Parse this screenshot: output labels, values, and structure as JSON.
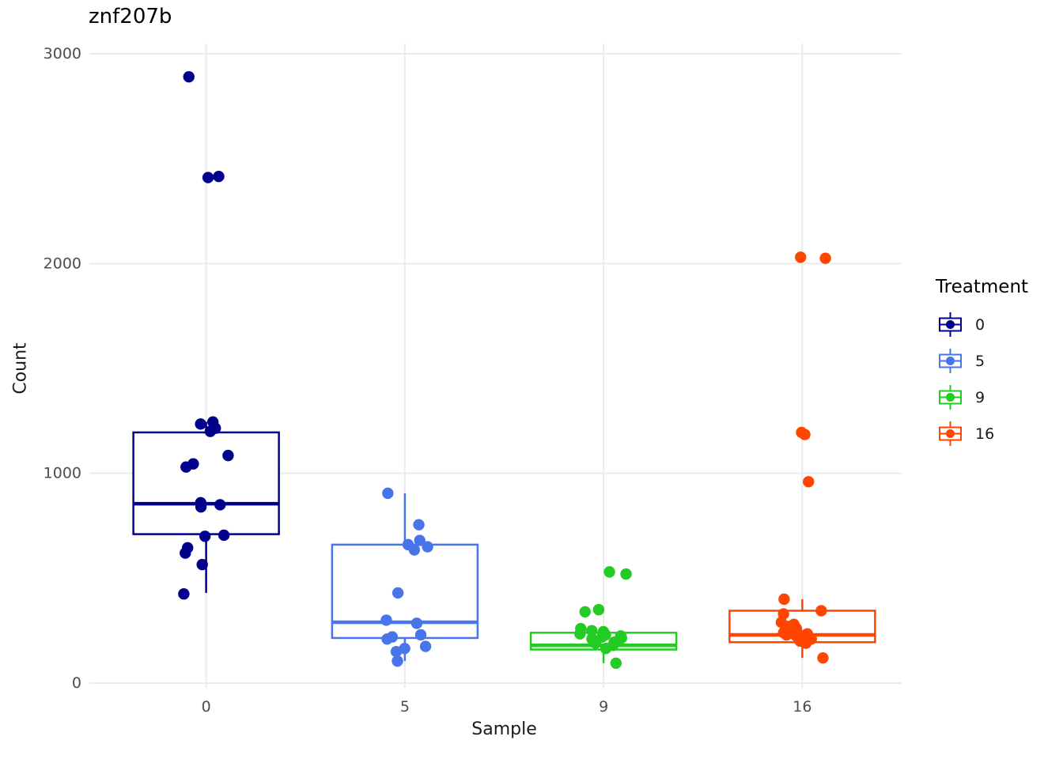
{
  "chart_data": {
    "type": "boxplot",
    "title": "znf207b",
    "xlabel": "Sample",
    "ylabel": "Count",
    "legend_title": "Treatment",
    "legend_position": "right",
    "categories": [
      "0",
      "5",
      "9",
      "16"
    ],
    "ylim": [
      0,
      3000
    ],
    "yticks": [
      0,
      1000,
      2000,
      3000
    ],
    "grid": true,
    "colors": {
      "background": "#FFFFFF",
      "grid": "#EBEBEB",
      "axis_text": "#4D4D4D",
      "title_text": "#000000",
      "axis_title_text": "#1A1A1A"
    },
    "groups": [
      {
        "name": "0",
        "color": "#00008B",
        "box": {
          "whisker_low": 430,
          "q1": 710,
          "median": 855,
          "q3": 1195,
          "whisker_high": 1245
        },
        "points": [
          2890,
          2415,
          2410,
          1245,
          1235,
          1215,
          1200,
          1085,
          1045,
          1030,
          860,
          850,
          840,
          705,
          700,
          645,
          620,
          565,
          425
        ]
      },
      {
        "name": "5",
        "color": "#4876EA",
        "box": {
          "whisker_low": 105,
          "q1": 215,
          "median": 290,
          "q3": 660,
          "whisker_high": 905
        },
        "points": [
          905,
          755,
          680,
          660,
          650,
          635,
          430,
          300,
          285,
          230,
          220,
          210,
          175,
          165,
          150,
          105
        ]
      },
      {
        "name": "9",
        "color": "#22CC22",
        "box": {
          "whisker_low": 95,
          "q1": 160,
          "median": 180,
          "q3": 240,
          "whisker_high": 265
        },
        "points": [
          530,
          520,
          350,
          340,
          260,
          250,
          245,
          235,
          230,
          225,
          220,
          215,
          210,
          205,
          195,
          190,
          180,
          165,
          95
        ]
      },
      {
        "name": "16",
        "color": "#FF4500",
        "box": {
          "whisker_low": 120,
          "q1": 195,
          "median": 230,
          "q3": 345,
          "whisker_high": 400
        },
        "points": [
          2030,
          2025,
          1195,
          1185,
          960,
          400,
          345,
          330,
          290,
          280,
          270,
          260,
          255,
          245,
          240,
          235,
          230,
          225,
          215,
          210,
          200,
          190,
          120
        ]
      }
    ]
  }
}
